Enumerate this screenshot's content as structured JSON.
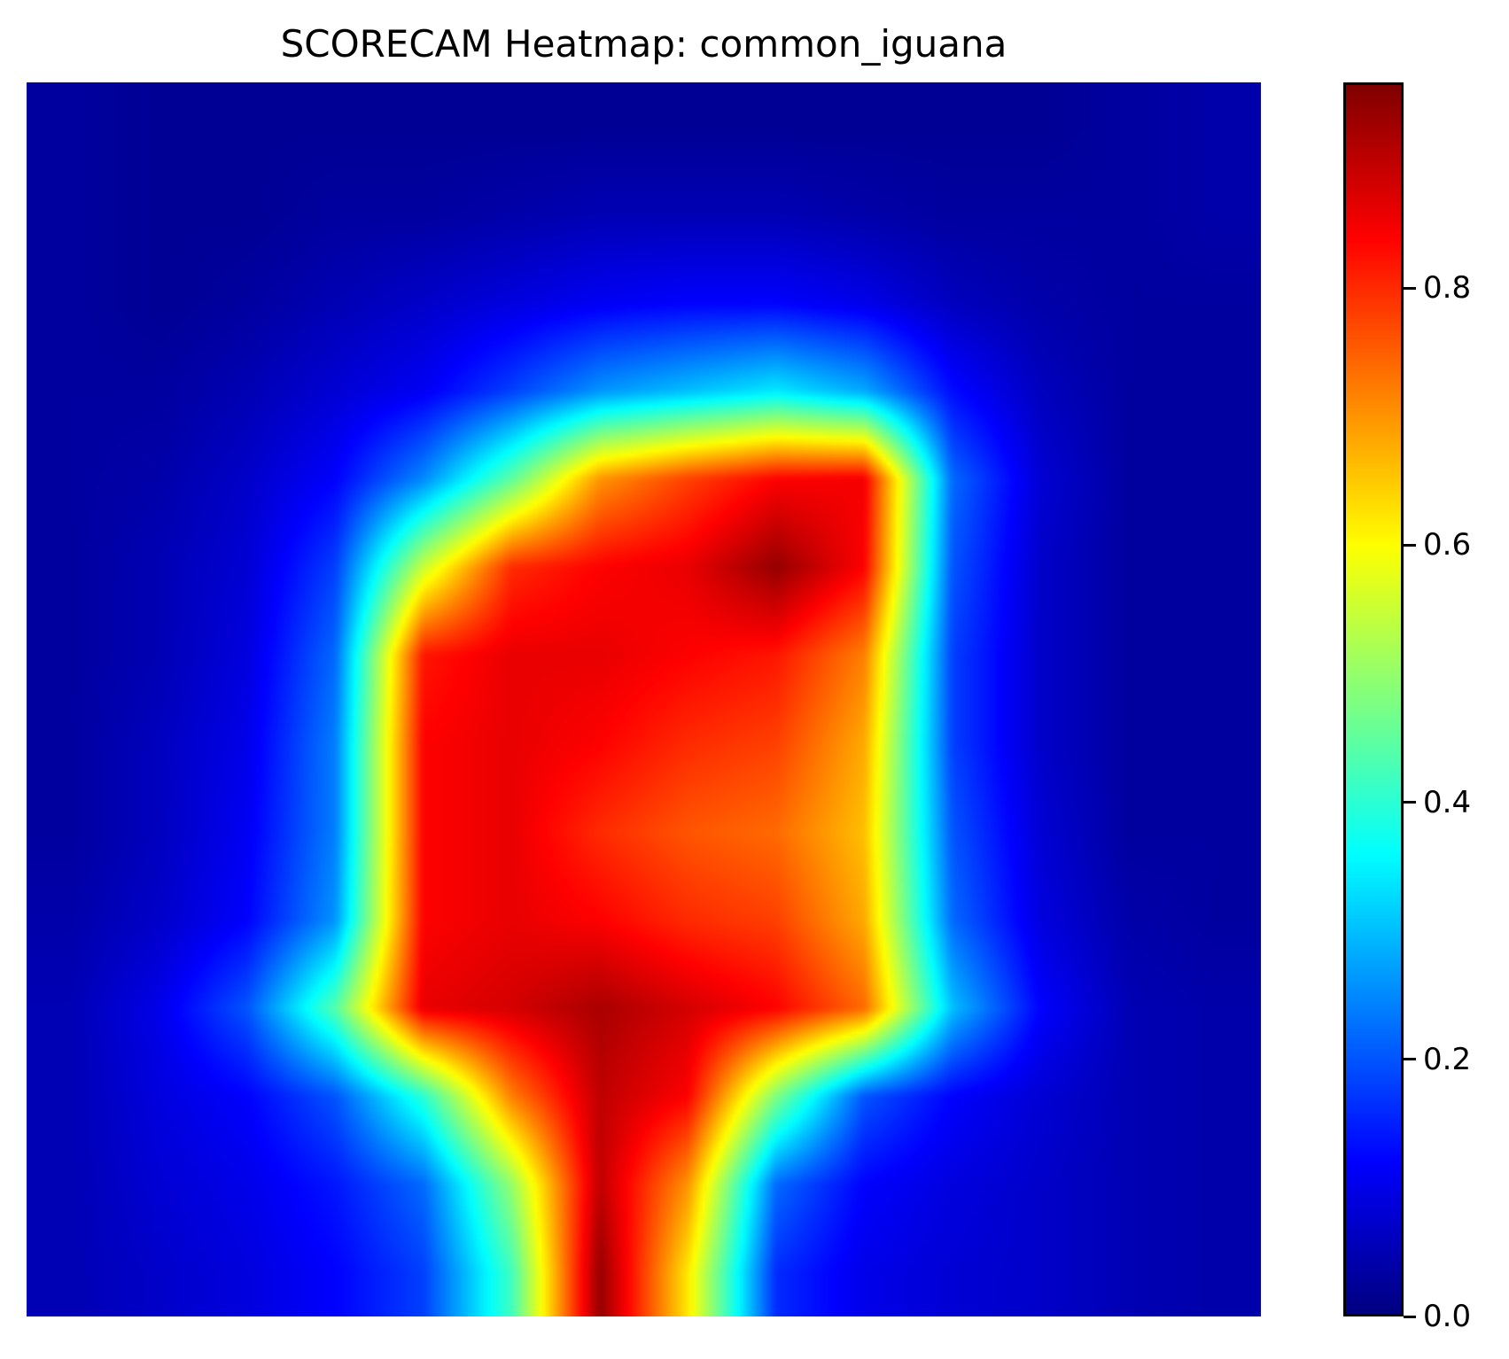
{
  "chart_data": {
    "type": "heatmap",
    "title": "SCORECAM Heatmap: common_iguana",
    "xlabel": "",
    "ylabel": "",
    "axes_visible": false,
    "colormap": "jet",
    "value_range": [
      0.0,
      0.96
    ],
    "colorbar": {
      "ticks": [
        0.0,
        0.2,
        0.4,
        0.6,
        0.8
      ],
      "tick_labels": [
        "0.0",
        "0.2",
        "0.4",
        "0.6",
        "0.8"
      ],
      "placement": "right"
    },
    "grid_size": [
      14,
      14
    ],
    "values": [
      [
        0.03,
        0.02,
        0.02,
        0.02,
        0.02,
        0.02,
        0.02,
        0.02,
        0.02,
        0.02,
        0.02,
        0.02,
        0.03,
        0.04
      ],
      [
        0.03,
        0.02,
        0.02,
        0.03,
        0.03,
        0.04,
        0.05,
        0.05,
        0.05,
        0.04,
        0.03,
        0.03,
        0.03,
        0.04
      ],
      [
        0.03,
        0.02,
        0.03,
        0.05,
        0.07,
        0.09,
        0.11,
        0.12,
        0.12,
        0.1,
        0.06,
        0.04,
        0.03,
        0.03
      ],
      [
        0.03,
        0.03,
        0.05,
        0.08,
        0.11,
        0.18,
        0.26,
        0.3,
        0.34,
        0.28,
        0.13,
        0.06,
        0.03,
        0.03
      ],
      [
        0.03,
        0.04,
        0.07,
        0.12,
        0.25,
        0.45,
        0.7,
        0.78,
        0.84,
        0.85,
        0.22,
        0.08,
        0.03,
        0.03
      ],
      [
        0.03,
        0.05,
        0.08,
        0.18,
        0.55,
        0.8,
        0.84,
        0.86,
        0.94,
        0.84,
        0.2,
        0.07,
        0.03,
        0.03
      ],
      [
        0.03,
        0.05,
        0.09,
        0.22,
        0.82,
        0.86,
        0.86,
        0.84,
        0.82,
        0.72,
        0.18,
        0.07,
        0.03,
        0.03
      ],
      [
        0.03,
        0.06,
        0.1,
        0.24,
        0.84,
        0.86,
        0.84,
        0.8,
        0.78,
        0.68,
        0.18,
        0.07,
        0.03,
        0.03
      ],
      [
        0.03,
        0.06,
        0.11,
        0.24,
        0.84,
        0.86,
        0.8,
        0.76,
        0.74,
        0.66,
        0.2,
        0.08,
        0.03,
        0.03
      ],
      [
        0.04,
        0.07,
        0.12,
        0.26,
        0.84,
        0.86,
        0.84,
        0.8,
        0.78,
        0.68,
        0.22,
        0.09,
        0.04,
        0.03
      ],
      [
        0.05,
        0.1,
        0.2,
        0.44,
        0.86,
        0.88,
        0.92,
        0.88,
        0.84,
        0.74,
        0.3,
        0.12,
        0.05,
        0.04
      ],
      [
        0.05,
        0.09,
        0.12,
        0.2,
        0.4,
        0.72,
        0.9,
        0.84,
        0.48,
        0.2,
        0.12,
        0.08,
        0.05,
        0.04
      ],
      [
        0.05,
        0.08,
        0.1,
        0.14,
        0.22,
        0.5,
        0.9,
        0.7,
        0.22,
        0.12,
        0.09,
        0.07,
        0.05,
        0.04
      ],
      [
        0.05,
        0.07,
        0.09,
        0.12,
        0.18,
        0.42,
        0.94,
        0.62,
        0.16,
        0.1,
        0.08,
        0.07,
        0.05,
        0.04
      ]
    ]
  }
}
